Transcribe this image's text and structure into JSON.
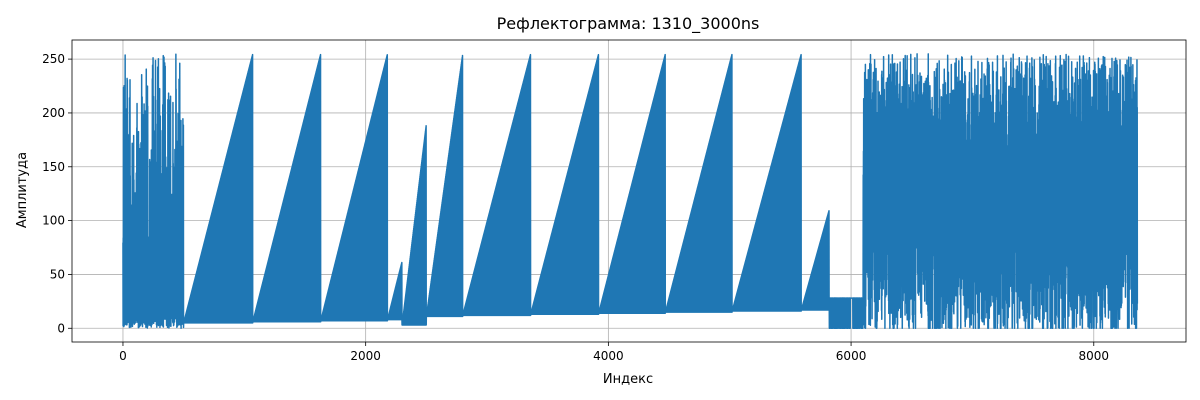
{
  "chart_data": {
    "type": "line",
    "title": "Рефлектограмма: 1310_3000ns",
    "xlabel": "Индекс",
    "ylabel": "Амплитуда",
    "xlim": [
      -420,
      8760
    ],
    "ylim": [
      -12.75,
      267.75
    ],
    "xticks": [
      0,
      2000,
      4000,
      6000,
      8000
    ],
    "xtick_labels": [
      "0",
      "2000",
      "4000",
      "6000",
      "8000"
    ],
    "yticks": [
      0,
      50,
      100,
      150,
      200,
      250
    ],
    "ytick_labels": [
      "0",
      "50",
      "100",
      "150",
      "200",
      "250"
    ],
    "grid": true,
    "line_color": "#1f77b4",
    "n_points": 8360,
    "series": [
      {
        "sawtooth_segments": [
          {
            "x_start": 500,
            "x_end": 1070,
            "y_floor": 5,
            "y_peak": 255
          },
          {
            "x_start": 1070,
            "x_end": 1630,
            "y_floor": 6,
            "y_peak": 255
          },
          {
            "x_start": 1630,
            "x_end": 2180,
            "y_floor": 7,
            "y_peak": 255
          },
          {
            "x_start": 2180,
            "x_end": 2300,
            "y_floor": 8,
            "y_peak": 62
          },
          {
            "x_start": 2300,
            "x_end": 2500,
            "y_floor": 3,
            "y_peak": 190
          },
          {
            "x_start": 2500,
            "x_end": 2800,
            "y_floor": 11,
            "y_peak": 255
          },
          {
            "x_start": 2800,
            "x_end": 3360,
            "y_floor": 12,
            "y_peak": 255
          },
          {
            "x_start": 3360,
            "x_end": 3920,
            "y_floor": 13,
            "y_peak": 255
          },
          {
            "x_start": 3920,
            "x_end": 4470,
            "y_floor": 14,
            "y_peak": 255
          },
          {
            "x_start": 4470,
            "x_end": 5020,
            "y_floor": 15,
            "y_peak": 255
          },
          {
            "x_start": 5020,
            "x_end": 5590,
            "y_floor": 16,
            "y_peak": 255
          },
          {
            "x_start": 5590,
            "x_end": 5820,
            "y_floor": 17,
            "y_peak": 110
          }
        ],
        "noisy_regions": [
          {
            "x_start": 0,
            "x_end": 500,
            "y_min": 0,
            "y_max": 255
          },
          {
            "x_start": 5820,
            "x_end": 6100,
            "y_min": 0,
            "y_max": 28
          },
          {
            "x_start": 6100,
            "x_end": 8360,
            "y_min": 0,
            "y_max": 255
          }
        ]
      }
    ]
  }
}
